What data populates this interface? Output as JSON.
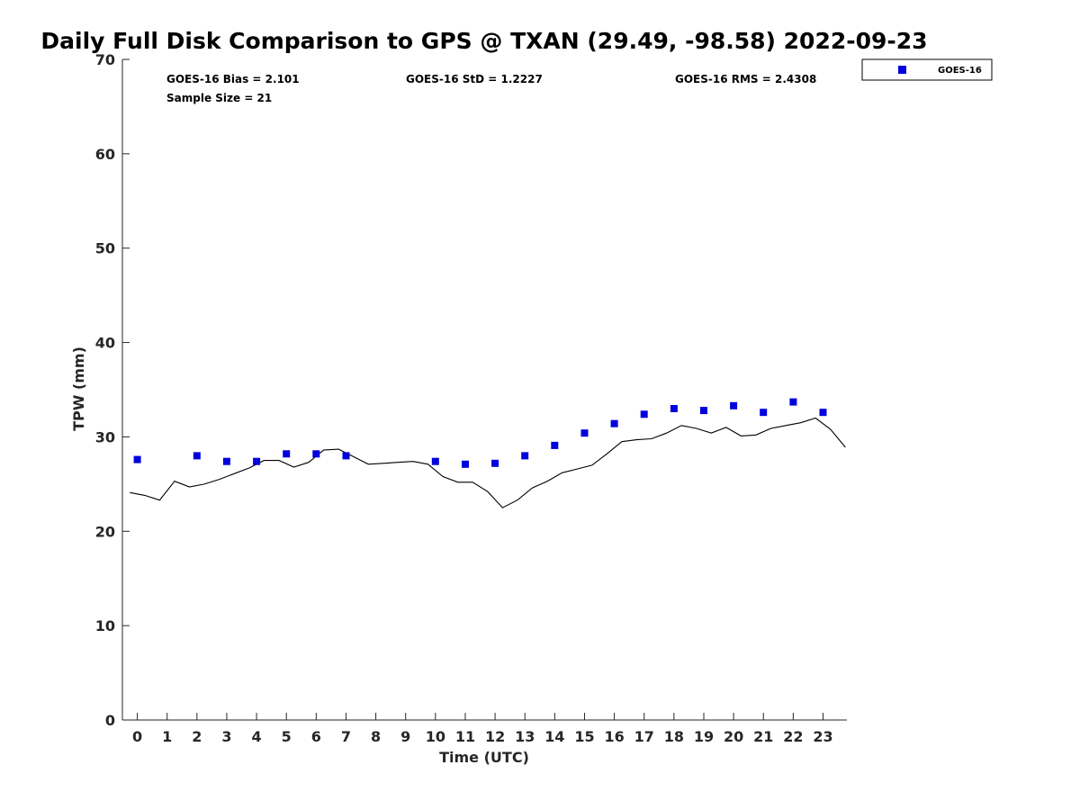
{
  "chart_data": {
    "type": "scatter",
    "title": "Daily Full Disk Comparison to GPS @ TXAN (29.49, -98.58) 2022-09-23",
    "xlabel": "Time (UTC)",
    "ylabel": "TPW (mm)",
    "xlim": [
      -0.5,
      23.8
    ],
    "ylim": [
      0,
      70
    ],
    "x_ticks": [
      "0",
      "1",
      "2",
      "3",
      "4",
      "5",
      "6",
      "7",
      "8",
      "9",
      "10",
      "11",
      "12",
      "13",
      "14",
      "15",
      "16",
      "17",
      "18",
      "19",
      "20",
      "21",
      "22",
      "23"
    ],
    "y_ticks": [
      "0",
      "10",
      "20",
      "30",
      "40",
      "50",
      "60",
      "70"
    ],
    "grid": false,
    "legend_position": "top-right, outside plot",
    "stats": {
      "bias": "GOES-16 Bias = 2.101",
      "std": "GOES-16 StD = 1.2227",
      "rms": "GOES-16 RMS = 2.4308",
      "sample_size": "Sample Size = 21"
    },
    "series": [
      {
        "name": "GOES-16",
        "kind": "scatter",
        "marker": "square",
        "color": "#0000dd",
        "x": [
          0,
          2,
          3,
          4,
          5,
          6,
          7,
          10,
          11,
          12,
          13,
          14,
          15,
          16,
          17,
          18,
          19,
          20,
          21,
          22,
          23
        ],
        "y": [
          27.6,
          28.0,
          27.4,
          27.4,
          28.2,
          28.2,
          28.0,
          27.4,
          27.1,
          27.2,
          28.0,
          29.1,
          30.4,
          31.4,
          32.4,
          33.0,
          32.8,
          33.3,
          32.6,
          33.7,
          32.6
        ]
      },
      {
        "kind": "line",
        "color": "#000000",
        "x": [
          -0.25,
          0.25,
          0.75,
          1.25,
          1.75,
          2.25,
          2.75,
          3.25,
          3.75,
          4.25,
          4.75,
          5.25,
          5.75,
          6.25,
          6.75,
          7.25,
          7.75,
          8.25,
          8.75,
          9.25,
          9.75,
          10.25,
          10.75,
          11.25,
          11.75,
          12.25,
          12.75,
          13.25,
          13.75,
          14.25,
          14.75,
          15.25,
          15.75,
          16.25,
          16.75,
          17.25,
          17.75,
          18.25,
          18.75,
          19.25,
          19.75,
          20.25,
          20.75,
          21.25,
          21.75,
          22.25,
          22.75,
          23.25,
          23.75
        ],
        "y": [
          24.1,
          23.8,
          23.3,
          25.3,
          24.7,
          25.0,
          25.5,
          26.1,
          26.7,
          27.5,
          27.5,
          26.8,
          27.3,
          28.6,
          28.7,
          27.9,
          27.1,
          27.2,
          27.3,
          27.4,
          27.1,
          25.8,
          25.2,
          25.2,
          24.2,
          22.5,
          23.3,
          24.6,
          25.3,
          26.2,
          26.6,
          27.0,
          28.2,
          29.5,
          29.7,
          29.8,
          30.4,
          31.2,
          30.9,
          30.4,
          31.0,
          30.1,
          30.2,
          30.9,
          31.2,
          31.5,
          32.0,
          30.8,
          28.9
        ]
      }
    ]
  }
}
